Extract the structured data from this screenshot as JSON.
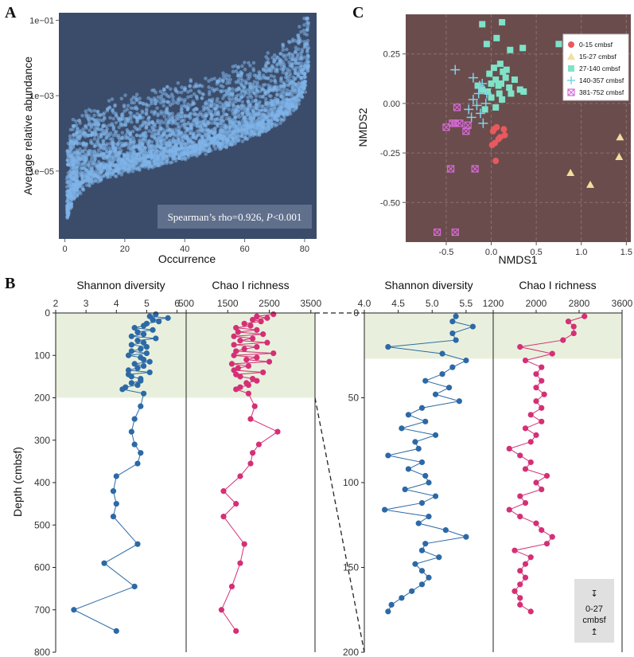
{
  "panel_labels": {
    "a": "A",
    "b": "B",
    "c": "C"
  },
  "zoom_note": {
    "l1": "↧",
    "l2": "0-27",
    "l3": "cmbsf",
    "l4": "↥"
  },
  "colors": {
    "panelA_bg": "#3b4c6a",
    "panelA_points": "#7fb5ea",
    "panelA_box": "#5f6f8c",
    "panelC_bg": "#6b4c4c",
    "shannon": "#2c69a6",
    "chao": "#d52f76",
    "highlight": "#e8f0dd"
  },
  "chart_data": [
    {
      "id": "A",
      "type": "scatter",
      "title": "",
      "xlabel": "Occurrence",
      "ylabel": "Average relative abundance",
      "xlim": [
        -2,
        84
      ],
      "ylim_log10": [
        -6.8,
        -0.8
      ],
      "xticks": [
        0,
        20,
        40,
        60,
        80
      ],
      "yticks": [
        {
          "v": -1,
          "label": "1e−01"
        },
        {
          "v": -3,
          "label": "1e−03"
        },
        {
          "v": -5,
          "label": "1e−05"
        }
      ],
      "annotation": {
        "prefix": "Spearman’s rho=0.926, ",
        "p": "P",
        "suffix": "<0.001"
      },
      "trend_log10": [
        [
          1,
          -5.9
        ],
        [
          3,
          -5.4
        ],
        [
          8,
          -5.05
        ],
        [
          15,
          -4.85
        ],
        [
          25,
          -4.65
        ],
        [
          35,
          -4.45
        ],
        [
          45,
          -4.25
        ],
        [
          55,
          -4.0
        ],
        [
          65,
          -3.7
        ],
        [
          72,
          -3.4
        ],
        [
          77,
          -3.05
        ],
        [
          80,
          -2.6
        ],
        [
          81,
          -2.1
        ]
      ],
      "points_per_occurrence": 40
    },
    {
      "id": "C",
      "type": "scatter",
      "xlabel": "NMDS1",
      "ylabel": "NMDS2",
      "xlim": [
        -0.95,
        1.55
      ],
      "ylim": [
        -0.7,
        0.45
      ],
      "xticks": [
        -0.5,
        0.0,
        0.5,
        1.0,
        1.5
      ],
      "yticks": [
        0.25,
        0.0,
        -0.25,
        -0.5
      ],
      "xtick_labels": [
        "-0.5",
        "0.0",
        "0.5",
        "1.0",
        "1.5"
      ],
      "ytick_labels": [
        "0.25",
        "0.00",
        "-0.25",
        "-0.50"
      ],
      "series": [
        {
          "name": "0-15 cmbsf",
          "color": "#e8595f",
          "marker": "circle",
          "points": [
            [
              0.02,
              -0.14
            ],
            [
              0.06,
              -0.12
            ],
            [
              0.1,
              -0.17
            ],
            [
              0.15,
              -0.16
            ],
            [
              0.04,
              -0.2
            ],
            [
              0.01,
              -0.21
            ],
            [
              0.08,
              -0.18
            ],
            [
              0.05,
              -0.29
            ],
            [
              0.03,
              -0.13
            ],
            [
              0.14,
              -0.13
            ]
          ]
        },
        {
          "name": "15-27 cmbsf",
          "color": "#f2df9f",
          "marker": "triangle",
          "points": [
            [
              0.88,
              -0.35
            ],
            [
              1.1,
              -0.41
            ],
            [
              1.43,
              -0.17
            ],
            [
              1.42,
              -0.27
            ]
          ]
        },
        {
          "name": "27-140 cmbsf",
          "color": "#7ee3c8",
          "marker": "square",
          "points": [
            [
              -0.1,
              0.4
            ],
            [
              0.12,
              0.41
            ],
            [
              0.75,
              0.3
            ],
            [
              0.06,
              0.33
            ],
            [
              -0.05,
              0.3
            ],
            [
              0.21,
              0.27
            ],
            [
              0.35,
              0.28
            ],
            [
              0.1,
              0.2
            ],
            [
              0.03,
              0.18
            ],
            [
              -0.02,
              0.15
            ],
            [
              0.05,
              0.12
            ],
            [
              0.16,
              0.13
            ],
            [
              0.08,
              0.09
            ],
            [
              0.2,
              0.08
            ],
            [
              0.32,
              0.07
            ],
            [
              0.36,
              0.06
            ],
            [
              -0.1,
              0.07
            ],
            [
              0.0,
              0.03
            ],
            [
              0.12,
              0.02
            ],
            [
              0.22,
              0.05
            ],
            [
              0.05,
              -0.02
            ],
            [
              -0.07,
              -0.03
            ],
            [
              0.11,
              0.1
            ],
            [
              0.0,
              0.1
            ],
            [
              0.17,
              0.17
            ],
            [
              0.13,
              0.16
            ],
            [
              -0.15,
              0.09
            ],
            [
              0.26,
              0.12
            ],
            [
              0.09,
              0.05
            ],
            [
              -0.04,
              0.06
            ]
          ]
        },
        {
          "name": "140-357 cmbsf",
          "color": "#7ed3ea",
          "marker": "plus",
          "points": [
            [
              -0.4,
              0.17
            ],
            [
              -0.2,
              0.13
            ],
            [
              -0.13,
              0.09
            ],
            [
              -0.05,
              0.05
            ],
            [
              -0.2,
              0.02
            ],
            [
              -0.16,
              -0.01
            ],
            [
              -0.25,
              -0.03
            ],
            [
              -0.12,
              -0.05
            ],
            [
              -0.09,
              -0.1
            ],
            [
              -0.06,
              0.0
            ],
            [
              -0.22,
              -0.07
            ],
            [
              -0.1,
              0.1
            ],
            [
              -0.14,
              0.05
            ]
          ]
        },
        {
          "name": "381-752 cmbsf",
          "color": "#d66ad6",
          "marker": "xbox",
          "points": [
            [
              -0.38,
              -0.02
            ],
            [
              -0.5,
              -0.12
            ],
            [
              -0.35,
              -0.1
            ],
            [
              -0.26,
              -0.11
            ],
            [
              -0.28,
              -0.14
            ],
            [
              -0.43,
              -0.1
            ],
            [
              -0.4,
              -0.1
            ],
            [
              -0.45,
              -0.33
            ],
            [
              -0.18,
              -0.33
            ],
            [
              -0.6,
              -0.65
            ],
            [
              -0.4,
              -0.65
            ]
          ]
        }
      ]
    },
    {
      "id": "B-shannon-full",
      "type": "line",
      "header": "Shannon  diversity",
      "xlim": [
        2,
        6.3
      ],
      "xticks": [
        2,
        3,
        4,
        5,
        6
      ],
      "ylabel": "Depth (cmbsf)",
      "ylim": [
        0,
        800
      ],
      "yticks": [
        0,
        100,
        200,
        300,
        400,
        500,
        600,
        700,
        800
      ],
      "highlight_range": [
        0,
        200
      ],
      "depth": [
        3,
        8,
        12,
        16,
        20,
        25,
        30,
        35,
        40,
        45,
        50,
        55,
        60,
        65,
        70,
        75,
        80,
        85,
        90,
        95,
        100,
        105,
        110,
        115,
        120,
        125,
        130,
        135,
        140,
        145,
        150,
        155,
        160,
        165,
        170,
        175,
        180,
        190,
        220,
        250,
        280,
        310,
        330,
        355,
        385,
        420,
        450,
        480,
        545,
        590,
        645,
        700,
        750
      ],
      "values": [
        5.3,
        5.1,
        5.7,
        5.2,
        5.4,
        5.0,
        4.9,
        4.6,
        5.2,
        4.7,
        4.9,
        4.5,
        5.3,
        4.7,
        4.9,
        4.5,
        5.0,
        4.8,
        4.5,
        5.0,
        4.4,
        4.8,
        4.9,
        5.1,
        4.6,
        4.9,
        4.7,
        4.4,
        5.1,
        4.4,
        4.5,
        4.8,
        4.8,
        4.5,
        4.7,
        4.3,
        4.2,
        4.9,
        4.8,
        4.6,
        4.5,
        4.6,
        4.8,
        4.7,
        4.0,
        3.9,
        4.0,
        3.9,
        4.7,
        3.6,
        4.6,
        2.6,
        4.0
      ]
    },
    {
      "id": "B-chao-full",
      "type": "line",
      "header": "Chao I  richness",
      "xlim": [
        500,
        3600
      ],
      "xticks": [
        500,
        1500,
        2500,
        3500
      ],
      "ylim": [
        0,
        800
      ],
      "highlight_range": [
        0,
        200
      ],
      "depth": [
        3,
        8,
        12,
        16,
        20,
        25,
        30,
        35,
        40,
        45,
        50,
        55,
        60,
        65,
        70,
        75,
        80,
        85,
        90,
        95,
        100,
        105,
        110,
        115,
        120,
        125,
        130,
        135,
        140,
        145,
        150,
        155,
        160,
        165,
        170,
        175,
        180,
        190,
        220,
        250,
        280,
        310,
        330,
        355,
        385,
        420,
        450,
        480,
        545,
        590,
        645,
        700,
        750
      ],
      "values": [
        2600,
        2200,
        2450,
        2100,
        2300,
        1900,
        2050,
        1700,
        2200,
        1750,
        2350,
        1650,
        2100,
        1800,
        2450,
        1650,
        2200,
        1900,
        1700,
        2600,
        1650,
        2200,
        1950,
        2500,
        1600,
        2000,
        1750,
        1650,
        2350,
        1700,
        1800,
        2100,
        2200,
        1950,
        2000,
        1800,
        1700,
        2000,
        2150,
        2050,
        2700,
        2250,
        2100,
        2050,
        1800,
        1400,
        1700,
        1400,
        1900,
        1800,
        1600,
        1350,
        1700
      ]
    },
    {
      "id": "B-shannon-zoom",
      "type": "line",
      "header": "Shannon  diversity",
      "xlim": [
        4.0,
        5.9
      ],
      "xticks": [
        4.0,
        4.5,
        5.0,
        5.5
      ],
      "xtick_labels": [
        "4.0",
        "4.5",
        "5.0",
        "5.5"
      ],
      "ylim": [
        0,
        200
      ],
      "yticks": [
        0,
        50,
        100,
        150,
        200
      ],
      "highlight_range": [
        0,
        27
      ],
      "depth": [
        2,
        5,
        8,
        12,
        16,
        20,
        24,
        28,
        32,
        36,
        40,
        44,
        48,
        52,
        56,
        60,
        64,
        68,
        72,
        76,
        80,
        84,
        88,
        92,
        96,
        100,
        104,
        108,
        112,
        116,
        120,
        124,
        128,
        132,
        136,
        140,
        144,
        148,
        152,
        156,
        160,
        164,
        168,
        172,
        176
      ],
      "values": [
        5.35,
        5.3,
        5.6,
        5.3,
        5.35,
        4.35,
        5.15,
        5.5,
        5.3,
        5.15,
        4.9,
        5.25,
        5.05,
        5.4,
        4.85,
        4.65,
        4.9,
        4.55,
        5.05,
        4.75,
        4.8,
        4.35,
        4.85,
        4.65,
        4.9,
        4.95,
        4.6,
        5.05,
        4.85,
        4.3,
        4.95,
        4.8,
        5.2,
        5.5,
        4.9,
        4.85,
        5.1,
        4.75,
        4.85,
        4.95,
        4.85,
        4.7,
        4.55,
        4.4,
        4.35
      ]
    },
    {
      "id": "B-chao-zoom",
      "type": "line",
      "header": "Chao I  richness",
      "xlim": [
        1200,
        3600
      ],
      "xticks": [
        1200,
        2000,
        2800,
        3600
      ],
      "ylim": [
        0,
        200
      ],
      "highlight_range": [
        0,
        27
      ],
      "depth": [
        2,
        5,
        8,
        12,
        16,
        20,
        24,
        28,
        32,
        36,
        40,
        44,
        48,
        52,
        56,
        60,
        64,
        68,
        72,
        76,
        80,
        84,
        88,
        92,
        96,
        100,
        104,
        108,
        112,
        116,
        120,
        124,
        128,
        132,
        136,
        140,
        144,
        148,
        152,
        156,
        160,
        164,
        168,
        172,
        176
      ],
      "values": [
        2900,
        2600,
        2700,
        2700,
        2500,
        1700,
        2300,
        1800,
        2100,
        2000,
        2100,
        2000,
        2150,
        2000,
        2100,
        1900,
        2100,
        1800,
        2000,
        1900,
        1500,
        1700,
        1900,
        1800,
        2200,
        2000,
        2100,
        1700,
        1800,
        1500,
        1700,
        2000,
        2100,
        2300,
        2200,
        1600,
        1900,
        1800,
        1700,
        1800,
        1700,
        1600,
        1700,
        1700,
        1900
      ]
    }
  ]
}
